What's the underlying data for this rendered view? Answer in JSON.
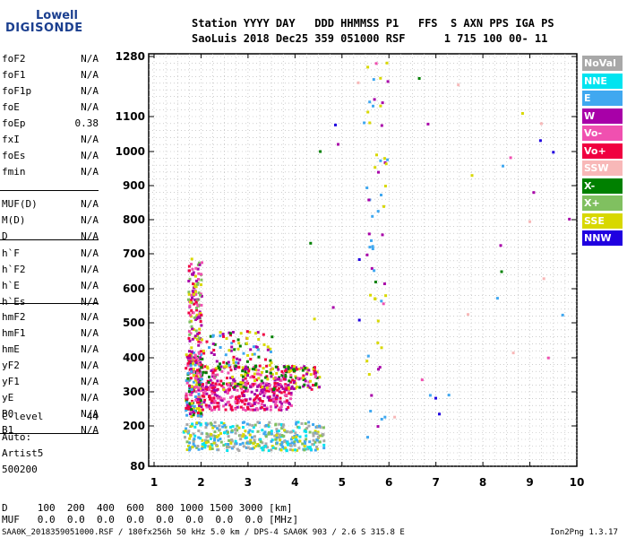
{
  "logo": {
    "line1": "Lowell",
    "line2": "DIGISONDE"
  },
  "header": {
    "row1": "Station YYYY DAY   DDD HHMMSS P1   FFS  S AXN PPS IGA PS",
    "row2": "SaoLuis 2018 Dec25 359 051000 RSF      1 715 100 00- 11"
  },
  "params": {
    "group1": [
      {
        "name": "foF2",
        "value": "N/A"
      },
      {
        "name": "foF1",
        "value": "N/A"
      },
      {
        "name": "foF1p",
        "value": "N/A"
      },
      {
        "name": "foE",
        "value": "N/A"
      },
      {
        "name": "foEp",
        "value": "0.38"
      },
      {
        "name": "fxI",
        "value": "N/A"
      },
      {
        "name": "foEs",
        "value": "N/A"
      },
      {
        "name": "fmin",
        "value": "N/A"
      }
    ],
    "group2": [
      {
        "name": "MUF(D)",
        "value": "N/A"
      },
      {
        "name": "M(D)",
        "value": "N/A"
      },
      {
        "name": "D",
        "value": "N/A"
      }
    ],
    "group3": [
      {
        "name": "h`F",
        "value": "N/A"
      },
      {
        "name": "h`F2",
        "value": "N/A"
      },
      {
        "name": "h`E",
        "value": "N/A"
      },
      {
        "name": "h`Es",
        "value": "N/A"
      }
    ],
    "group4": [
      {
        "name": "hmF2",
        "value": "N/A"
      },
      {
        "name": "hmF1",
        "value": "N/A"
      },
      {
        "name": "hmE",
        "value": "N/A"
      },
      {
        "name": "yF2",
        "value": "N/A"
      },
      {
        "name": "yF1",
        "value": "N/A"
      },
      {
        "name": "yE",
        "value": "N/A"
      },
      {
        "name": "B0",
        "value": "N/A"
      },
      {
        "name": "B1",
        "value": "N/A"
      }
    ],
    "clevel": {
      "name": "C-level",
      "value": "44"
    },
    "auto": [
      "Auto:",
      "Artist5",
      "500200"
    ]
  },
  "legend": [
    {
      "label": "NoVal",
      "color": "#a8a8a8"
    },
    {
      "label": "NNE",
      "color": "#00e4f0"
    },
    {
      "label": "E",
      "color": "#40a8f0"
    },
    {
      "label": "W",
      "color": "#a800a8"
    },
    {
      "label": "Vo-",
      "color": "#f050b0"
    },
    {
      "label": "Vo+",
      "color": "#f00040"
    },
    {
      "label": "SSW",
      "color": "#f8b8b8"
    },
    {
      "label": "X-",
      "color": "#008000"
    },
    {
      "label": "X+",
      "color": "#80c060"
    },
    {
      "label": "SSE",
      "color": "#d8d800"
    },
    {
      "label": "NNW",
      "color": "#2000e0"
    }
  ],
  "bottom": {
    "row1": "D     100  200  400  600  800 1000 1500 3000 [km]",
    "row2": "MUF   0.0  0.0  0.0  0.0  0.0  0.0  0.0  0.0 [MHz]",
    "footer_left": "SAA0K_2018359051000.RSF / 180fx256h 50 kHz 5.0 km / DPS-4 SAA0K 903 / 2.6 S 315.8 E",
    "footer_right": "Ion2Png 1.3.17"
  },
  "chart_data": {
    "type": "scatter",
    "xlim": [
      1,
      10
    ],
    "ylim": [
      80,
      1280
    ],
    "x_ticks": [
      1,
      2,
      3,
      4,
      5,
      6,
      7,
      8,
      9,
      10
    ],
    "y_ticks": [
      80,
      200,
      300,
      400,
      500,
      600,
      700,
      800,
      900,
      1000,
      1100,
      1280
    ],
    "grid": true,
    "legend_position": "right",
    "xlabel": "",
    "ylabel": "",
    "clusters": [
      {
        "x": [
          1.65,
          2.0
        ],
        "y": [
          230,
          420
        ],
        "count": 220,
        "colors": [
          "#a800a8",
          "#f00040",
          "#f050b0",
          "#d8d800",
          "#008000",
          "#40a8f0"
        ]
      },
      {
        "x": [
          1.7,
          2.0
        ],
        "y": [
          400,
          690
        ],
        "count": 130,
        "colors": [
          "#a800a8",
          "#f00040",
          "#f050b0",
          "#d8d800",
          "#80c060"
        ]
      },
      {
        "x": [
          2.0,
          3.9
        ],
        "y": [
          250,
          330
        ],
        "count": 300,
        "colors": [
          "#f00040",
          "#a800a8",
          "#f050b0"
        ]
      },
      {
        "x": [
          2.0,
          4.5
        ],
        "y": [
          310,
          380
        ],
        "count": 260,
        "colors": [
          "#d8d800",
          "#f050b0",
          "#a800a8",
          "#f00040",
          "#008000"
        ]
      },
      {
        "x": [
          2.0,
          3.5
        ],
        "y": [
          370,
          480
        ],
        "count": 90,
        "colors": [
          "#a800a8",
          "#f00040",
          "#d8d800",
          "#008000",
          "#40a8f0"
        ]
      },
      {
        "x": [
          1.6,
          4.6
        ],
        "y": [
          130,
          215
        ],
        "count": 380,
        "colors": [
          "#40a8f0",
          "#00e4f0",
          "#d8d800",
          "#80c060",
          "#a8a8a8"
        ]
      },
      {
        "x": [
          5.5,
          5.95
        ],
        "y": [
          150,
          1280
        ],
        "count": 55,
        "colors": [
          "#d8d800",
          "#40a8f0",
          "#a800a8"
        ]
      },
      {
        "x": [
          4.3,
          10
        ],
        "y": [
          200,
          1280
        ],
        "count": 45,
        "colors": [
          "#a800a8",
          "#f8b8b8",
          "#d8d800",
          "#40a8f0",
          "#2000e0",
          "#008000",
          "#f050b0"
        ]
      }
    ]
  }
}
